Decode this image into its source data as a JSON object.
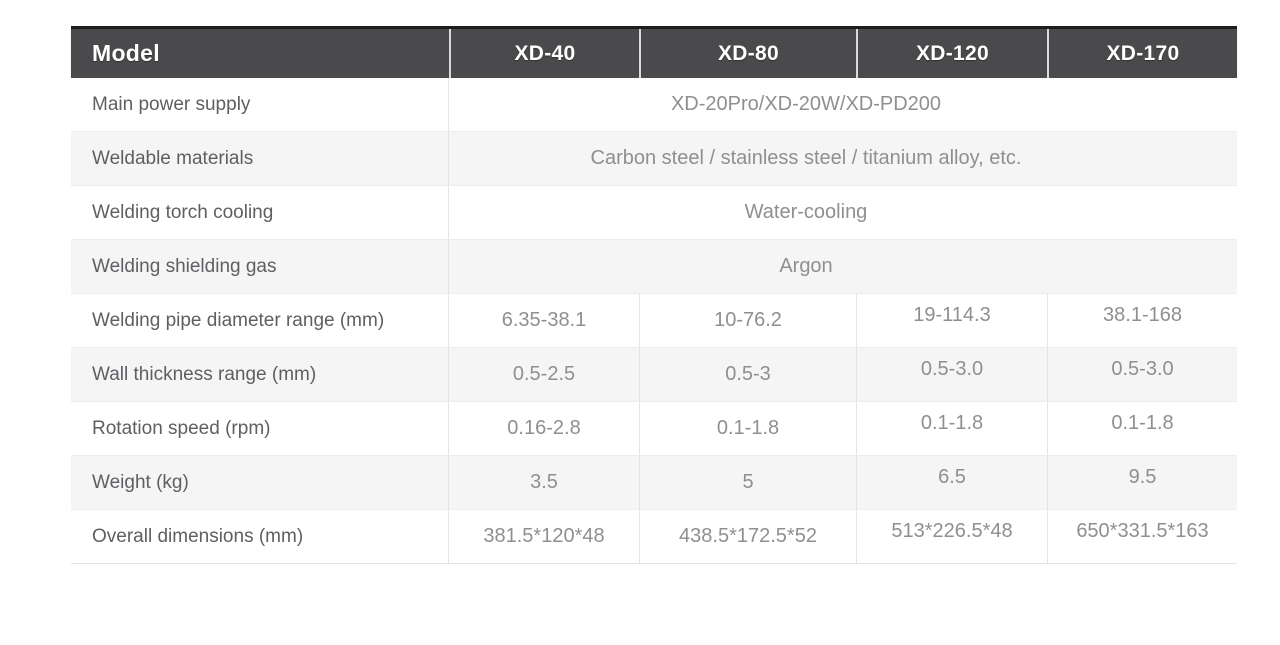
{
  "table": {
    "header": {
      "model_label": "Model",
      "columns": [
        "XD-40",
        "XD-80",
        "XD-120",
        "XD-170"
      ]
    },
    "rows": [
      {
        "label": "Main power supply",
        "type": "span",
        "value": "XD-20Pro/XD-20W/XD-PD200"
      },
      {
        "label": "Weldable materials",
        "type": "span",
        "value": "Carbon steel / stainless steel / titanium alloy, etc."
      },
      {
        "label": "Welding torch cooling",
        "type": "span",
        "value": "Water-cooling"
      },
      {
        "label": "Welding shielding gas",
        "type": "span",
        "value": "Argon"
      },
      {
        "label": "Welding pipe diameter range (mm)",
        "type": "cells",
        "values": [
          "6.35-38.1",
          "10-76.2",
          "19-114.3",
          "38.1-168"
        ]
      },
      {
        "label": "Wall thickness range (mm)",
        "type": "cells",
        "values": [
          "0.5-2.5",
          "0.5-3",
          "0.5-3.0",
          "0.5-3.0"
        ]
      },
      {
        "label": "Rotation speed (rpm)",
        "type": "cells",
        "values": [
          "0.16-2.8",
          "0.1-1.8",
          "0.1-1.8",
          "0.1-1.8"
        ]
      },
      {
        "label": "Weight (kg)",
        "type": "cells",
        "values": [
          "3.5",
          "5",
          "6.5",
          "9.5"
        ]
      },
      {
        "label": "Overall dimensions (mm)",
        "type": "cells",
        "values": [
          "381.5*120*48",
          "438.5*172.5*52",
          "513*226.5*48",
          "650*331.5*163"
        ]
      }
    ],
    "colors": {
      "header_bg": "#4a4a4c",
      "header_top_border": "#1d1d1f",
      "header_text": "#ffffff",
      "row_alt_bg": "#f5f5f6",
      "label_text": "#5f5f63",
      "value_text": "#8f8f92",
      "grid_line": "#e4e4e6"
    }
  }
}
